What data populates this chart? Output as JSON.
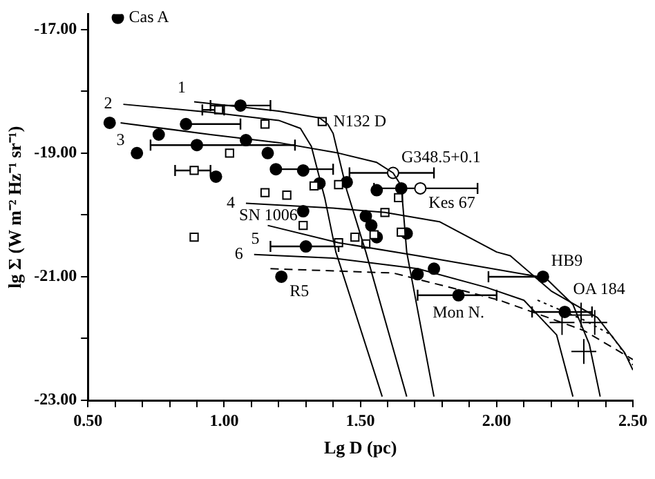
{
  "chart_data": {
    "type": "scatter",
    "xlabel": "Lg D (pc)",
    "ylabel": "lg Σ (W m⁻² Hz⁻¹ sr⁻¹)",
    "xlim": [
      0.5,
      2.5
    ],
    "xticks": [
      {
        "value": 0.5,
        "label": "0.50"
      },
      {
        "value": 0.6,
        "label": null
      },
      {
        "value": 0.7,
        "label": null
      },
      {
        "value": 0.8,
        "label": null
      },
      {
        "value": 0.9,
        "label": null
      },
      {
        "value": 1.0,
        "label": "1.00"
      },
      {
        "value": 1.1,
        "label": null
      },
      {
        "value": 1.2,
        "label": null
      },
      {
        "value": 1.3,
        "label": null
      },
      {
        "value": 1.4,
        "label": null
      },
      {
        "value": 1.5,
        "label": "1.50"
      },
      {
        "value": 1.6,
        "label": null
      },
      {
        "value": 1.7,
        "label": null
      },
      {
        "value": 1.8,
        "label": null
      },
      {
        "value": 1.9,
        "label": null
      },
      {
        "value": 2.0,
        "label": "2.00"
      },
      {
        "value": 2.1,
        "label": null
      },
      {
        "value": 2.2,
        "label": null
      },
      {
        "value": 2.3,
        "label": null
      },
      {
        "value": 2.4,
        "label": null
      },
      {
        "value": 2.5,
        "label": "2.50"
      }
    ],
    "ylim": [
      -23,
      -16.75
    ],
    "yticks": [
      {
        "value": -23,
        "label": "-23.00"
      },
      {
        "value": -22,
        "label": null
      },
      {
        "value": -21,
        "label": "-21.00"
      },
      {
        "value": -20,
        "label": null
      },
      {
        "value": -19,
        "label": "-19.00"
      },
      {
        "value": -18,
        "label": null
      },
      {
        "value": -17,
        "label": "-17.00"
      }
    ],
    "grid": false,
    "legend": false,
    "series": [
      {
        "type": "scatter",
        "marker": "circle",
        "color": "#000000",
        "x": [
          0.61,
          0.58,
          0.68,
          0.76,
          0.86,
          0.9,
          0.97,
          1.06,
          1.08,
          1.16,
          1.19,
          1.29,
          1.35,
          1.29,
          1.3,
          1.21,
          1.45,
          1.56,
          1.65,
          1.52,
          1.54,
          1.56,
          1.67,
          1.71,
          1.77,
          1.86,
          2.17,
          2.25
        ],
        "values": [
          -16.81,
          -18.51,
          -19.0,
          -18.7,
          -18.53,
          -18.87,
          -19.38,
          -18.23,
          -18.79,
          -19.0,
          -19.26,
          -19.28,
          -19.49,
          -19.94,
          -20.51,
          -21.0,
          -19.47,
          -19.6,
          -19.57,
          -20.02,
          -20.17,
          -20.36,
          -20.3,
          -20.96,
          -20.87,
          -21.3,
          -21.0,
          -21.57
        ],
        "xerrors": [
          null,
          null,
          null,
          null,
          [
            0.86,
            1.06
          ],
          [
            0.73,
            1.26
          ],
          null,
          [
            0.95,
            1.17
          ],
          null,
          null,
          [
            1.19,
            1.4
          ],
          null,
          null,
          null,
          [
            1.17,
            1.42
          ],
          null,
          null,
          null,
          [
            1.55,
            1.93
          ],
          null,
          null,
          null,
          null,
          null,
          null,
          [
            1.71,
            2.0
          ],
          [
            1.97,
            2.17
          ],
          [
            2.13,
            2.35
          ]
        ]
      },
      {
        "type": "scatter",
        "marker": "square",
        "color": "#ffffff",
        "x": [
          0.89,
          0.89,
          1.02,
          1.15,
          0.98,
          1.36,
          1.15,
          1.23,
          1.33,
          1.29,
          1.42,
          1.64,
          1.59,
          1.65,
          1.48,
          1.52,
          1.55,
          1.42
        ],
        "values": [
          -20.36,
          -19.28,
          -19.0,
          -18.53,
          -18.3,
          -18.49,
          -19.64,
          -19.68,
          -19.53,
          -20.17,
          -19.51,
          -19.72,
          -19.96,
          -20.28,
          -20.36,
          -20.47,
          -20.32,
          -20.45
        ],
        "xerrors": [
          null,
          [
            0.82,
            0.95
          ],
          null,
          null,
          [
            0.92,
            1.0
          ],
          null,
          null,
          null,
          null,
          null,
          null,
          null,
          null,
          null,
          null,
          null,
          null,
          null
        ]
      },
      {
        "type": "scatter",
        "marker": "circle",
        "color": "#ffffff",
        "x": [
          1.62,
          1.72
        ],
        "values": [
          -19.32,
          -19.57
        ],
        "xerrors": [
          [
            1.46,
            1.77
          ],
          null
        ]
      },
      {
        "type": "scatter",
        "marker": "cross",
        "color": "#000000",
        "x": [
          2.24,
          2.31,
          2.36,
          2.32
        ],
        "values": [
          -21.74,
          -21.62,
          -21.74,
          -22.21
        ]
      },
      {
        "type": "line",
        "line_style": "solid",
        "color": "#000000",
        "x": [
          0.89,
          1.2,
          1.35,
          1.38,
          1.4,
          1.45,
          1.52,
          1.67
        ],
        "values": [
          -18.17,
          -18.32,
          -18.43,
          -18.53,
          -18.68,
          -19.6,
          -20.6,
          -22.94
        ]
      },
      {
        "type": "line",
        "line_style": "solid",
        "color": "#000000",
        "x": [
          0.63,
          0.95,
          1.2,
          1.28,
          1.32,
          1.37,
          1.41,
          1.58
        ],
        "values": [
          -18.21,
          -18.34,
          -18.47,
          -18.6,
          -18.89,
          -19.74,
          -20.6,
          -22.94
        ]
      },
      {
        "type": "line",
        "line_style": "solid",
        "color": "#000000",
        "x": [
          0.62,
          0.95,
          1.2,
          1.42,
          1.56,
          1.62,
          1.65,
          1.67,
          1.77
        ],
        "values": [
          -18.51,
          -18.7,
          -18.83,
          -19.0,
          -19.15,
          -19.32,
          -19.53,
          -20.6,
          -22.94
        ]
      },
      {
        "type": "line",
        "line_style": "solid",
        "color": "#000000",
        "x": [
          1.08,
          1.4,
          1.59,
          1.79,
          2.0,
          2.05,
          2.2,
          2.37,
          2.47,
          2.5
        ],
        "values": [
          -19.81,
          -19.89,
          -19.96,
          -20.11,
          -20.6,
          -20.66,
          -21.23,
          -21.66,
          -22.23,
          -22.51
        ]
      },
      {
        "type": "line",
        "line_style": "solid",
        "color": "#000000",
        "x": [
          1.16,
          1.42,
          1.71,
          2.18,
          2.28,
          2.34,
          2.38
        ],
        "values": [
          -20.17,
          -20.45,
          -20.66,
          -21.02,
          -21.45,
          -22.09,
          -22.94
        ]
      },
      {
        "type": "line",
        "line_style": "solid",
        "color": "#000000",
        "x": [
          1.11,
          1.4,
          1.71,
          1.96,
          2.1,
          2.22,
          2.28
        ],
        "values": [
          -20.64,
          -20.7,
          -20.87,
          -21.17,
          -21.38,
          -21.94,
          -22.94
        ]
      },
      {
        "type": "line",
        "line_style": "dashed",
        "color": "#000000",
        "x": [
          1.17,
          1.62,
          1.88,
          2.01,
          2.15,
          2.32,
          2.5
        ],
        "values": [
          -20.87,
          -20.94,
          -21.23,
          -21.38,
          -21.6,
          -21.87,
          -22.34
        ]
      },
      {
        "type": "line",
        "line_style": "dotted",
        "color": "#000000",
        "x": [
          2.15,
          2.32,
          2.42,
          2.5
        ],
        "values": [
          -21.38,
          -21.7,
          -21.94,
          -22.43
        ]
      }
    ],
    "annotations": [
      {
        "text": "Cas A",
        "x": 0.61,
        "y": -16.81
      },
      {
        "text": "N132 D",
        "x": 1.36,
        "y": -18.49
      },
      {
        "text": "G348.5+0.1",
        "x": 1.62,
        "y": -19.32
      },
      {
        "text": "Kes 67",
        "x": 1.72,
        "y": -19.57
      },
      {
        "text": "SN 1006",
        "x": 1.3,
        "y": -20.51
      },
      {
        "text": "R5",
        "x": 1.21,
        "y": -21.0
      },
      {
        "text": "HB9",
        "x": 2.17,
        "y": -21.0
      },
      {
        "text": "OA 184",
        "x": 2.25,
        "y": -21.57
      },
      {
        "text": "Mon N.",
        "x": 1.86,
        "y": -21.3
      },
      {
        "text": "1",
        "x": 0.89,
        "y": -18.17
      },
      {
        "text": "2",
        "x": 0.63,
        "y": -18.21
      },
      {
        "text": "3",
        "x": 0.62,
        "y": -18.51
      },
      {
        "text": "4",
        "x": 1.08,
        "y": -19.81
      },
      {
        "text": "5",
        "x": 1.16,
        "y": -20.17
      },
      {
        "text": "6",
        "x": 1.11,
        "y": -20.64
      }
    ]
  }
}
